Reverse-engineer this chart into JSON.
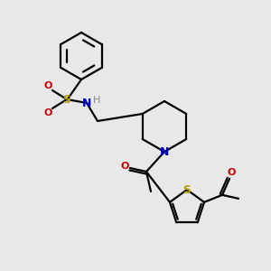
{
  "bg_color": "#e8e8e8",
  "line_color": "#000000",
  "bond_lw": 1.6,
  "N_color": "#0000cc",
  "O_color": "#cc0000",
  "S_color": "#b8a000",
  "H_color": "#888888",
  "figsize": [
    3.0,
    3.0
  ],
  "dpi": 100,
  "xlim": [
    0,
    300
  ],
  "ylim": [
    0,
    300
  ]
}
